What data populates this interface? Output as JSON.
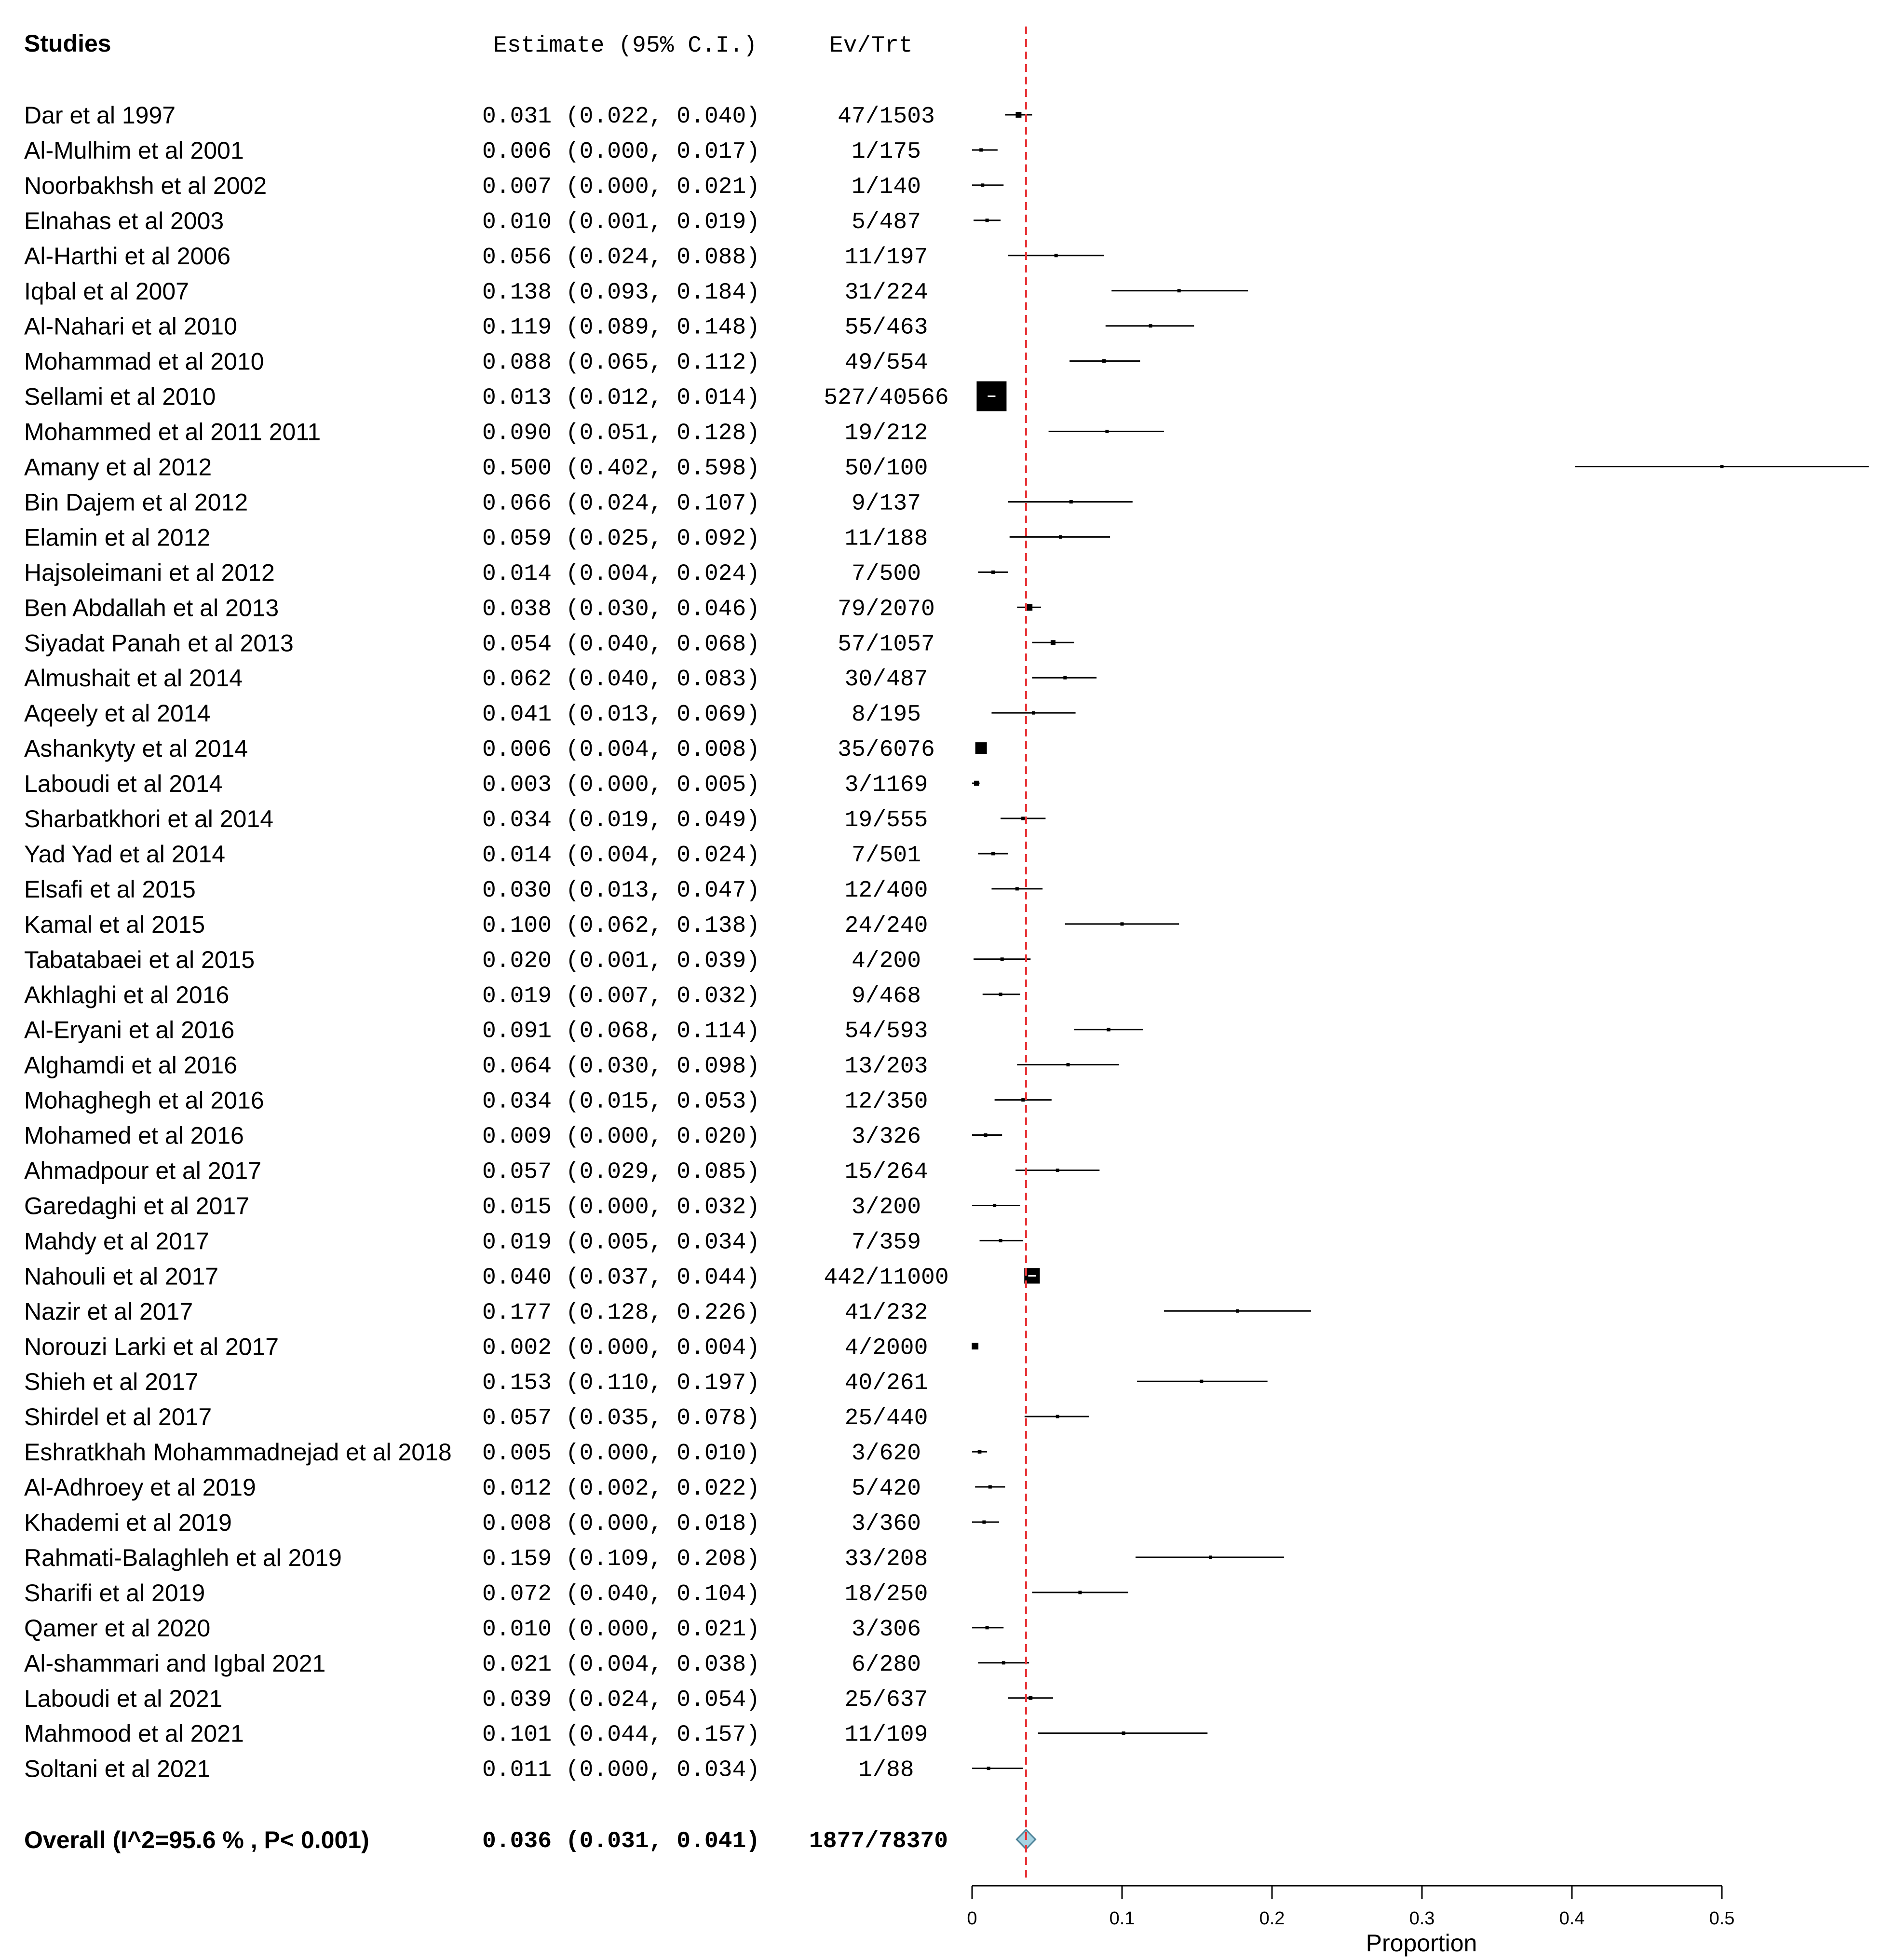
{
  "header": {
    "studies": "Studies",
    "estimate": "Estimate (95% C.I.)",
    "evtrt": "Ev/Trt"
  },
  "chart_data": {
    "type": "forest",
    "title": "",
    "xlabel": "Proportion",
    "ylabel": "",
    "xlim": [
      0,
      0.6
    ],
    "xticks": [
      0,
      0.1,
      0.2,
      0.3,
      0.4,
      0.5
    ],
    "xtick_labels": [
      "0",
      "0.1",
      "0.2",
      "0.3",
      "0.4",
      "0.5"
    ],
    "reference_line": 0.036,
    "colors": {
      "reference_line": "#e8373a",
      "diamond_fill": "#a6d3e2",
      "marker": "#000000"
    },
    "studies": [
      {
        "name": "Dar et al 1997",
        "est": 0.031,
        "lo": 0.022,
        "hi": 0.04,
        "evtrt": "47/1503",
        "ci_text": "0.031 (0.022, 0.040)"
      },
      {
        "name": "Al-Mulhim et al 2001",
        "est": 0.006,
        "lo": 0.0,
        "hi": 0.017,
        "evtrt": "1/175",
        "ci_text": "0.006 (0.000, 0.017)"
      },
      {
        "name": "Noorbakhsh et al 2002",
        "est": 0.007,
        "lo": 0.0,
        "hi": 0.021,
        "evtrt": "1/140",
        "ci_text": "0.007 (0.000, 0.021)"
      },
      {
        "name": "Elnahas et al 2003",
        "est": 0.01,
        "lo": 0.001,
        "hi": 0.019,
        "evtrt": "5/487",
        "ci_text": "0.010 (0.001, 0.019)"
      },
      {
        "name": "Al-Harthi et al 2006",
        "est": 0.056,
        "lo": 0.024,
        "hi": 0.088,
        "evtrt": "11/197",
        "ci_text": "0.056 (0.024, 0.088)"
      },
      {
        "name": "Iqbal et al 2007",
        "est": 0.138,
        "lo": 0.093,
        "hi": 0.184,
        "evtrt": "31/224",
        "ci_text": "0.138 (0.093, 0.184)"
      },
      {
        "name": "Al-Nahari et al 2010",
        "est": 0.119,
        "lo": 0.089,
        "hi": 0.148,
        "evtrt": "55/463",
        "ci_text": "0.119 (0.089, 0.148)"
      },
      {
        "name": "Mohammad  et al 2010",
        "est": 0.088,
        "lo": 0.065,
        "hi": 0.112,
        "evtrt": "49/554",
        "ci_text": "0.088 (0.065, 0.112)"
      },
      {
        "name": "Sellami et al 2010",
        "est": 0.013,
        "lo": 0.012,
        "hi": 0.014,
        "evtrt": "527/40566",
        "ci_text": "0.013 (0.012, 0.014)"
      },
      {
        "name": "Mohammed et al 2011 2011",
        "est": 0.09,
        "lo": 0.051,
        "hi": 0.128,
        "evtrt": "19/212",
        "ci_text": "0.090 (0.051, 0.128)"
      },
      {
        "name": "Amany et al 2012",
        "est": 0.5,
        "lo": 0.402,
        "hi": 0.598,
        "evtrt": "50/100",
        "ci_text": "0.500 (0.402, 0.598)"
      },
      {
        "name": "Bin Dajem et al 2012",
        "est": 0.066,
        "lo": 0.024,
        "hi": 0.107,
        "evtrt": "9/137",
        "ci_text": "0.066 (0.024, 0.107)"
      },
      {
        "name": "Elamin et al 2012",
        "est": 0.059,
        "lo": 0.025,
        "hi": 0.092,
        "evtrt": "11/188",
        "ci_text": "0.059 (0.025, 0.092)"
      },
      {
        "name": "Hajsoleimani et al 2012",
        "est": 0.014,
        "lo": 0.004,
        "hi": 0.024,
        "evtrt": "7/500",
        "ci_text": "0.014 (0.004, 0.024)"
      },
      {
        "name": "Ben Abdallah et al 2013",
        "est": 0.038,
        "lo": 0.03,
        "hi": 0.046,
        "evtrt": "79/2070",
        "ci_text": "0.038 (0.030, 0.046)"
      },
      {
        "name": "Siyadat Panah et al 2013",
        "est": 0.054,
        "lo": 0.04,
        "hi": 0.068,
        "evtrt": "57/1057",
        "ci_text": "0.054 (0.040, 0.068)"
      },
      {
        "name": "Almushait et al 2014",
        "est": 0.062,
        "lo": 0.04,
        "hi": 0.083,
        "evtrt": "30/487",
        "ci_text": "0.062 (0.040, 0.083)"
      },
      {
        "name": "Aqeely et al 2014",
        "est": 0.041,
        "lo": 0.013,
        "hi": 0.069,
        "evtrt": "8/195",
        "ci_text": "0.041 (0.013, 0.069)"
      },
      {
        "name": "Ashankyty et al 2014",
        "est": 0.006,
        "lo": 0.004,
        "hi": 0.008,
        "evtrt": "35/6076",
        "ci_text": "0.006 (0.004, 0.008)"
      },
      {
        "name": "Laboudi et al 2014",
        "est": 0.003,
        "lo": 0.0,
        "hi": 0.005,
        "evtrt": "3/1169",
        "ci_text": "0.003 (0.000, 0.005)"
      },
      {
        "name": "Sharbatkhori et al 2014",
        "est": 0.034,
        "lo": 0.019,
        "hi": 0.049,
        "evtrt": "19/555",
        "ci_text": "0.034 (0.019, 0.049)"
      },
      {
        "name": "Yad Yad et al 2014",
        "est": 0.014,
        "lo": 0.004,
        "hi": 0.024,
        "evtrt": "7/501",
        "ci_text": "0.014 (0.004, 0.024)"
      },
      {
        "name": "Elsafi et al 2015",
        "est": 0.03,
        "lo": 0.013,
        "hi": 0.047,
        "evtrt": "12/400",
        "ci_text": "0.030 (0.013, 0.047)"
      },
      {
        "name": "Kamal et al 2015",
        "est": 0.1,
        "lo": 0.062,
        "hi": 0.138,
        "evtrt": "24/240",
        "ci_text": "0.100 (0.062, 0.138)"
      },
      {
        "name": "Tabatabaei et al 2015",
        "est": 0.02,
        "lo": 0.001,
        "hi": 0.039,
        "evtrt": "4/200",
        "ci_text": "0.020 (0.001, 0.039)"
      },
      {
        "name": "Akhlaghi et al 2016",
        "est": 0.019,
        "lo": 0.007,
        "hi": 0.032,
        "evtrt": "9/468",
        "ci_text": "0.019 (0.007, 0.032)"
      },
      {
        "name": "Al-Eryani et al 2016",
        "est": 0.091,
        "lo": 0.068,
        "hi": 0.114,
        "evtrt": "54/593",
        "ci_text": "0.091 (0.068, 0.114)"
      },
      {
        "name": "Alghamdi et al 2016",
        "est": 0.064,
        "lo": 0.03,
        "hi": 0.098,
        "evtrt": "13/203",
        "ci_text": "0.064 (0.030, 0.098)"
      },
      {
        "name": "Mohaghegh et al 2016",
        "est": 0.034,
        "lo": 0.015,
        "hi": 0.053,
        "evtrt": "12/350",
        "ci_text": "0.034 (0.015, 0.053)"
      },
      {
        "name": "Mohamed et al 2016",
        "est": 0.009,
        "lo": 0.0,
        "hi": 0.02,
        "evtrt": "3/326",
        "ci_text": "0.009 (0.000, 0.020)"
      },
      {
        "name": "Ahmadpour et al 2017",
        "est": 0.057,
        "lo": 0.029,
        "hi": 0.085,
        "evtrt": "15/264",
        "ci_text": "0.057 (0.029, 0.085)"
      },
      {
        "name": "Garedaghi et al 2017",
        "est": 0.015,
        "lo": 0.0,
        "hi": 0.032,
        "evtrt": "3/200",
        "ci_text": "0.015 (0.000, 0.032)"
      },
      {
        "name": "Mahdy et al 2017",
        "est": 0.019,
        "lo": 0.005,
        "hi": 0.034,
        "evtrt": "7/359",
        "ci_text": "0.019 (0.005, 0.034)"
      },
      {
        "name": "Nahouli et al 2017",
        "est": 0.04,
        "lo": 0.037,
        "hi": 0.044,
        "evtrt": "442/11000",
        "ci_text": "0.040 (0.037, 0.044)"
      },
      {
        "name": "Nazir et al 2017",
        "est": 0.177,
        "lo": 0.128,
        "hi": 0.226,
        "evtrt": "41/232",
        "ci_text": "0.177 (0.128, 0.226)"
      },
      {
        "name": "Norouzi Larki et al 2017",
        "est": 0.002,
        "lo": 0.0,
        "hi": 0.004,
        "evtrt": "4/2000",
        "ci_text": "0.002 (0.000, 0.004)"
      },
      {
        "name": "Shieh et al 2017",
        "est": 0.153,
        "lo": 0.11,
        "hi": 0.197,
        "evtrt": "40/261",
        "ci_text": "0.153 (0.110, 0.197)"
      },
      {
        "name": "Shirdel et al 2017",
        "est": 0.057,
        "lo": 0.035,
        "hi": 0.078,
        "evtrt": "25/440",
        "ci_text": "0.057 (0.035, 0.078)"
      },
      {
        "name": "Eshratkhah Mohammadnejad et al 2018",
        "est": 0.005,
        "lo": 0.0,
        "hi": 0.01,
        "evtrt": "3/620",
        "ci_text": "0.005 (0.000, 0.010)"
      },
      {
        "name": "Al-Adhroey et al 2019",
        "est": 0.012,
        "lo": 0.002,
        "hi": 0.022,
        "evtrt": "5/420",
        "ci_text": "0.012 (0.002, 0.022)"
      },
      {
        "name": "Khademi et al 2019",
        "est": 0.008,
        "lo": 0.0,
        "hi": 0.018,
        "evtrt": "3/360",
        "ci_text": "0.008 (0.000, 0.018)"
      },
      {
        "name": "Rahmati-Balaghleh et al 2019",
        "est": 0.159,
        "lo": 0.109,
        "hi": 0.208,
        "evtrt": "33/208",
        "ci_text": "0.159 (0.109, 0.208)"
      },
      {
        "name": "Sharifi  et al 2019",
        "est": 0.072,
        "lo": 0.04,
        "hi": 0.104,
        "evtrt": "18/250",
        "ci_text": "0.072 (0.040, 0.104)"
      },
      {
        "name": "Qamer et al 2020",
        "est": 0.01,
        "lo": 0.0,
        "hi": 0.021,
        "evtrt": "3/306",
        "ci_text": "0.010 (0.000, 0.021)"
      },
      {
        "name": "Al-shammari and Igbal 2021",
        "est": 0.021,
        "lo": 0.004,
        "hi": 0.038,
        "evtrt": "6/280",
        "ci_text": "0.021 (0.004, 0.038)"
      },
      {
        "name": "Laboudi et al  2021",
        "est": 0.039,
        "lo": 0.024,
        "hi": 0.054,
        "evtrt": "25/637",
        "ci_text": "0.039 (0.024, 0.054)"
      },
      {
        "name": "Mahmood et al 2021",
        "est": 0.101,
        "lo": 0.044,
        "hi": 0.157,
        "evtrt": "11/109",
        "ci_text": "0.101 (0.044, 0.157)"
      },
      {
        "name": "Soltani et al 2021",
        "est": 0.011,
        "lo": 0.0,
        "hi": 0.034,
        "evtrt": "1/88",
        "ci_text": "0.011 (0.000, 0.034)"
      }
    ],
    "overall": {
      "name": "Overall (I^2=95.6 % , P< 0.001)",
      "est": 0.036,
      "lo": 0.031,
      "hi": 0.041,
      "evtrt": "1877/78370",
      "ci_text": "0.036 (0.031, 0.041)"
    }
  }
}
